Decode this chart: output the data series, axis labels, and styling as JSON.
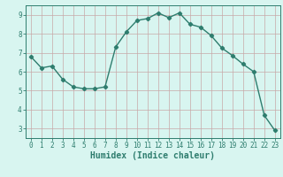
{
  "x": [
    0,
    1,
    2,
    3,
    4,
    5,
    6,
    7,
    8,
    9,
    10,
    11,
    12,
    13,
    14,
    15,
    16,
    17,
    18,
    19,
    20,
    21,
    22,
    23
  ],
  "y": [
    6.8,
    6.2,
    6.3,
    5.6,
    5.2,
    5.1,
    5.1,
    5.2,
    7.3,
    8.1,
    8.7,
    8.8,
    9.1,
    8.85,
    9.1,
    8.5,
    8.35,
    7.9,
    7.25,
    6.85,
    6.4,
    6.0,
    3.7,
    2.9
  ],
  "line_color": "#2e7d6e",
  "marker": "D",
  "marker_size": 2.2,
  "bg_color": "#d8f5f0",
  "major_grid_color": "#c8a8a8",
  "xlabel": "Humidex (Indice chaleur)",
  "xlim": [
    -0.5,
    23.5
  ],
  "ylim": [
    2.5,
    9.5
  ],
  "yticks": [
    3,
    4,
    5,
    6,
    7,
    8,
    9
  ],
  "xticks": [
    0,
    1,
    2,
    3,
    4,
    5,
    6,
    7,
    8,
    9,
    10,
    11,
    12,
    13,
    14,
    15,
    16,
    17,
    18,
    19,
    20,
    21,
    22,
    23
  ],
  "tick_label_fontsize": 5.5,
  "xlabel_fontsize": 7.0,
  "line_width": 1.0
}
